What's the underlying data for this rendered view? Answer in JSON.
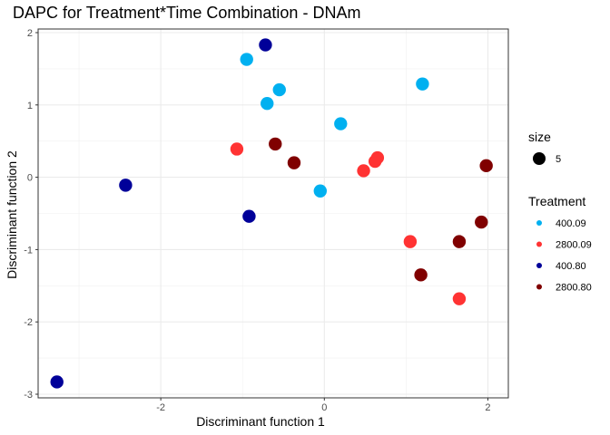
{
  "chart_data": {
    "type": "scatter",
    "title": "DAPC for Treatment*Time Combination - DNAm",
    "xlabel": "Discriminant function 1",
    "ylabel": "Discriminant function 2",
    "xlim": [
      -3.5,
      2.25
    ],
    "ylim": [
      -3.05,
      2.05
    ],
    "x_ticks": [
      -2,
      0,
      2
    ],
    "y_ticks": [
      -3,
      -2,
      -1,
      0,
      1,
      2
    ],
    "x_minor_ticks": [
      -3,
      -1,
      1
    ],
    "y_minor_ticks": [
      -2.5,
      -1.5,
      -0.5,
      0.5,
      1.5
    ],
    "grid": true,
    "legend_position": "right",
    "size_legend": {
      "title": "size",
      "label": "5"
    },
    "color_legend_title": "Treatment",
    "series": [
      {
        "name": "400.09",
        "color": "#00B0F0",
        "points": [
          [
            -0.95,
            1.63
          ],
          [
            -0.55,
            1.21
          ],
          [
            -0.7,
            1.02
          ],
          [
            1.2,
            1.29
          ],
          [
            0.2,
            0.74
          ],
          [
            -0.05,
            -0.19
          ]
        ]
      },
      {
        "name": "2800.09",
        "color": "#FF3333",
        "points": [
          [
            -1.07,
            0.39
          ],
          [
            0.48,
            0.09
          ],
          [
            0.62,
            0.22
          ],
          [
            0.65,
            0.27
          ],
          [
            1.05,
            -0.89
          ],
          [
            1.65,
            -1.68
          ]
        ]
      },
      {
        "name": "400.80",
        "color": "#000099",
        "points": [
          [
            -0.72,
            1.83
          ],
          [
            -2.43,
            -0.11
          ],
          [
            -0.92,
            -0.54
          ],
          [
            -3.27,
            -2.83
          ]
        ]
      },
      {
        "name": "2800.80",
        "color": "#800000",
        "points": [
          [
            -0.6,
            0.46
          ],
          [
            -0.37,
            0.2
          ],
          [
            1.98,
            0.16
          ],
          [
            1.92,
            -0.62
          ],
          [
            1.65,
            -0.89
          ],
          [
            1.18,
            -1.35
          ]
        ]
      }
    ]
  }
}
